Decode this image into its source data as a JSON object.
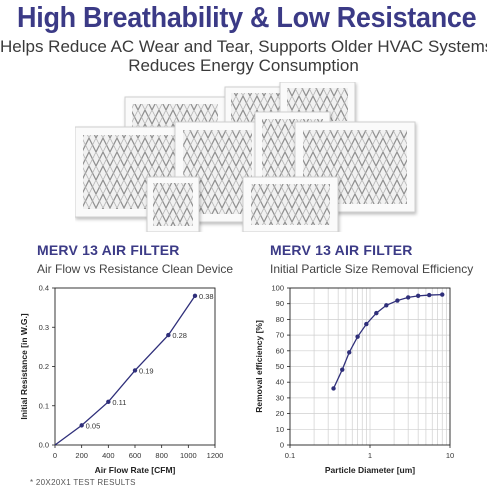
{
  "header": {
    "title": "High Breathability & Low Resistance",
    "subtitle_line1": "Helps Reduce AC Wear and Tear, Supports Older HVAC Systems,",
    "subtitle_line2": "Reduces Energy Consumption"
  },
  "image_alt": "air-filters-photo",
  "colors": {
    "accent": "#3b3a86",
    "series": "#2f2f7a"
  },
  "chart_data": [
    {
      "type": "line",
      "title": "MERV 13 AIR FILTER",
      "subtitle": "Air Flow vs Resistance Clean Device",
      "xlabel": "Air Flow Rate [CFM]",
      "ylabel": "Initial Resistance [in W.G.]",
      "xlim": [
        0,
        1200
      ],
      "ylim": [
        0,
        0.4
      ],
      "xticks": [
        0,
        200,
        400,
        600,
        800,
        1000,
        1200
      ],
      "yticks": [
        0,
        0.1,
        0.2,
        0.3,
        0.4
      ],
      "xtick_labels": [
        "0",
        "200",
        "400",
        "600",
        "800",
        "1000",
        "1200"
      ],
      "ytick_labels": [
        "0.0",
        "0.1",
        "0.2",
        "0.3",
        "0.4"
      ],
      "x": [
        200,
        400,
        600,
        850,
        1050
      ],
      "y": [
        0.05,
        0.11,
        0.19,
        0.28,
        0.38
      ],
      "point_labels": [
        "0.05",
        "0.11",
        "0.19",
        "0.28",
        "0.38"
      ],
      "grid": false
    },
    {
      "type": "line",
      "title": "MERV 13 AIR FILTER",
      "subtitle": "Initial Particle Size Removal Efficiency",
      "xlabel": "Particle Diameter [um]",
      "ylabel": "Removal efficiency [%]",
      "xscale": "log",
      "xlim": [
        0.1,
        10
      ],
      "ylim": [
        0,
        100
      ],
      "xticks": [
        0.1,
        1,
        10
      ],
      "yticks": [
        0,
        10,
        20,
        30,
        40,
        50,
        60,
        70,
        80,
        90,
        100
      ],
      "xtick_labels": [
        "0.1",
        "1",
        "10"
      ],
      "ytick_labels": [
        "0",
        "10",
        "20",
        "30",
        "40",
        "50",
        "60",
        "70",
        "80",
        "90",
        "100"
      ],
      "x": [
        0.35,
        0.45,
        0.55,
        0.7,
        0.9,
        1.2,
        1.6,
        2.2,
        3,
        4,
        5.5,
        8
      ],
      "y": [
        36,
        48,
        59,
        69,
        77,
        84,
        89,
        92,
        94,
        95,
        95.5,
        95.8
      ],
      "grid": true
    }
  ],
  "footnote": "* 20X20X1 TEST RESULTS"
}
